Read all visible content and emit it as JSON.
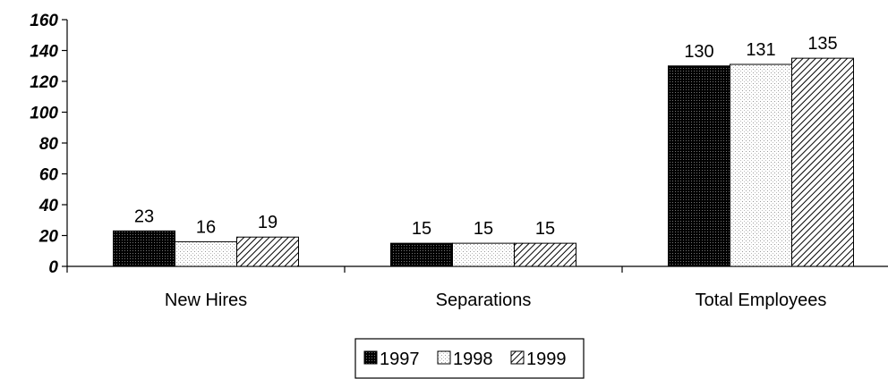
{
  "chart_data": {
    "type": "bar",
    "title": "",
    "xlabel": "",
    "ylabel": "",
    "ylim": [
      0,
      160
    ],
    "yticks": [
      0,
      20,
      40,
      60,
      80,
      100,
      120,
      140,
      160
    ],
    "categories": [
      "New Hires",
      "Separations",
      "Total Employees"
    ],
    "series": [
      {
        "name": "1997",
        "values": [
          23,
          15,
          130
        ],
        "pattern": "dark-dotted"
      },
      {
        "name": "1998",
        "values": [
          16,
          15,
          131
        ],
        "pattern": "light-dotted"
      },
      {
        "name": "1999",
        "values": [
          19,
          15,
          135
        ],
        "pattern": "diagonal-hatch"
      }
    ],
    "data_labels": true,
    "grid": false,
    "legend_position": "bottom-center",
    "colors": {
      "bar_outline": "#000000",
      "background": "#ffffff"
    }
  }
}
